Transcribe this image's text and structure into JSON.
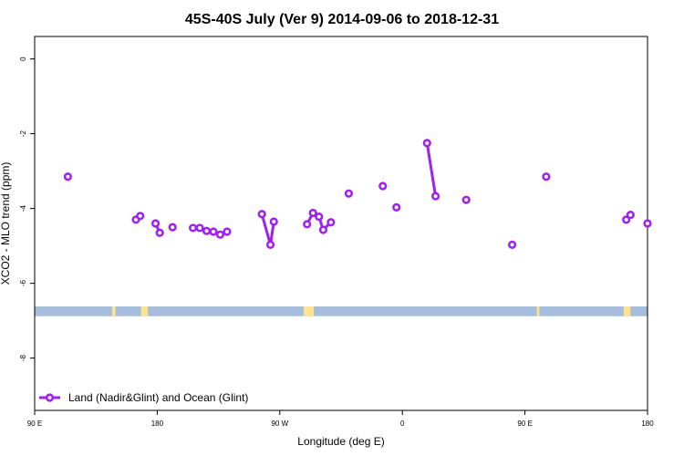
{
  "chart_data": {
    "type": "line",
    "title": "45S-40S July (Ver 9)   2014-09-06 to 2018-12-31",
    "xlabel": "Longitude (deg E)",
    "ylabel": "XCO2 - MLO trend (ppm)",
    "xlim": [
      90,
      450
    ],
    "ylim": [
      -9.4,
      0.6
    ],
    "x_ticks": [
      {
        "value": 90,
        "label": "90 E"
      },
      {
        "value": 162,
        "label": "180"
      },
      {
        "value": 234,
        "label": "90 W"
      },
      {
        "value": 306,
        "label": "0"
      },
      {
        "value": 378,
        "label": "90 E"
      },
      {
        "value": 450,
        "label": "180"
      }
    ],
    "y_ticks": [
      {
        "value": 0,
        "label": "0"
      },
      {
        "value": -2,
        "label": "-2"
      },
      {
        "value": -4,
        "label": "-4"
      },
      {
        "value": -6,
        "label": "-6"
      },
      {
        "value": -8,
        "label": "-8"
      }
    ],
    "series": [
      {
        "name": "Land (Nadir&Glint) and Ocean (Glint)",
        "color": "#a020f0",
        "segments": [
          [
            [
              109.5,
              -3.15
            ]
          ],
          [
            [
              149.5,
              -4.3
            ],
            [
              152.0,
              -4.2
            ]
          ],
          [
            [
              161.0,
              -4.4
            ],
            [
              163.5,
              -4.65
            ]
          ],
          [
            [
              171.0,
              -4.5
            ]
          ],
          [
            [
              183.0,
              -4.52
            ],
            [
              187.0,
              -4.52
            ],
            [
              191.0,
              -4.6
            ],
            [
              195.0,
              -4.62
            ],
            [
              199.0,
              -4.7
            ],
            [
              203.0,
              -4.62
            ]
          ],
          [
            [
              223.5,
              -4.15
            ],
            [
              228.5,
              -4.97
            ],
            [
              230.5,
              -4.35
            ]
          ],
          [
            [
              250.0,
              -4.42
            ],
            [
              253.5,
              -4.12
            ],
            [
              257.0,
              -4.22
            ],
            [
              259.5,
              -4.57
            ],
            [
              264.0,
              -4.37
            ]
          ],
          [
            [
              274.5,
              -3.6
            ]
          ],
          [
            [
              294.5,
              -3.4
            ]
          ],
          [
            [
              302.5,
              -3.97
            ]
          ],
          [
            [
              320.5,
              -2.25
            ],
            [
              325.5,
              -3.67
            ]
          ],
          [
            [
              343.5,
              -3.77
            ]
          ],
          [
            [
              370.5,
              -4.97
            ]
          ],
          [
            [
              390.5,
              -3.15
            ]
          ],
          [
            [
              437.5,
              -4.3
            ],
            [
              440.0,
              -4.17
            ]
          ],
          [
            [
              450.0,
              -4.4
            ]
          ]
        ]
      }
    ],
    "background_band": {
      "y_range": [
        -6.88,
        -6.62
      ],
      "ocean_color": "#a6bddb",
      "land_color": "#fee391",
      "land_x_ranges": [
        [
          135.5,
          137.5
        ],
        [
          152.5,
          156.5
        ],
        [
          248.0,
          254.0
        ],
        [
          385.0,
          386.5
        ],
        [
          436.0,
          440.0
        ]
      ]
    },
    "legend": {
      "position": "bottom-left",
      "label": "Land (Nadir&Glint) and Ocean (Glint)"
    },
    "grid": false
  }
}
